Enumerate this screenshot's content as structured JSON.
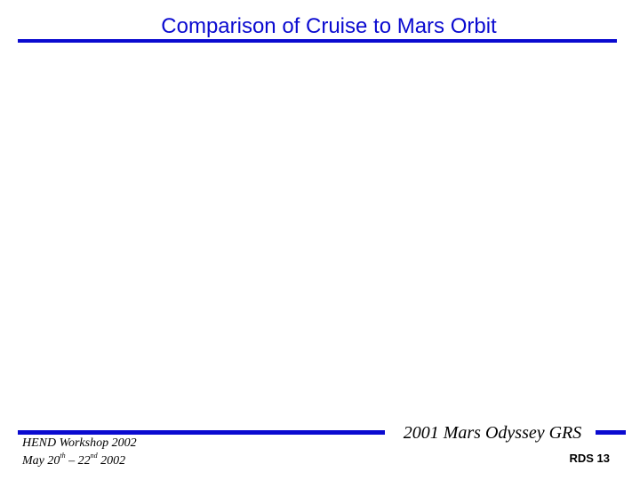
{
  "slide": {
    "title": "Comparison of Cruise to Mars Orbit"
  },
  "footer": {
    "workshop": "HEND Workshop 2002",
    "date_prefix": "May 20",
    "date_sup1": "th",
    "date_mid": " – 22",
    "date_sup2": "nd",
    "date_suffix": " 2002",
    "mission": "2001 Mars Odyssey GRS",
    "page": "RDS 13"
  },
  "colors": {
    "accent": "#0a0ad0",
    "text": "#000000",
    "background": "#ffffff"
  }
}
